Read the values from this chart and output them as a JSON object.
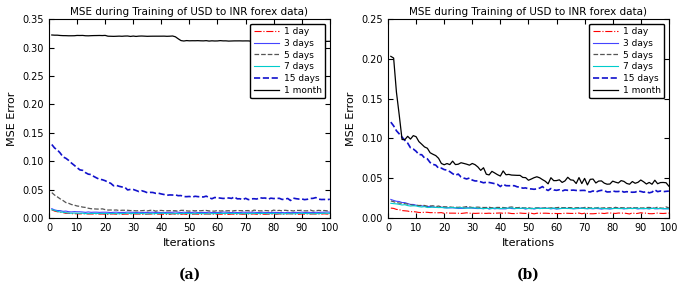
{
  "title": "MSE during Training of USD to INR forex data)",
  "xlabel": "Iterations",
  "ylabel": "MSE Error",
  "legend_labels": [
    "1 day",
    "3 days",
    "5 days",
    "7 days",
    "15 days",
    "1 month"
  ],
  "line_styles_a": [
    {
      "color": "#FF0000",
      "linestyle": "-.",
      "linewidth": 0.8
    },
    {
      "color": "#4444FF",
      "linestyle": "-",
      "linewidth": 0.8
    },
    {
      "color": "#555555",
      "linestyle": "--",
      "linewidth": 0.9
    },
    {
      "color": "#00CCCC",
      "linestyle": "-",
      "linewidth": 0.8
    },
    {
      "color": "#1111CC",
      "linestyle": "--",
      "linewidth": 1.2
    },
    {
      "color": "#000000",
      "linestyle": "-",
      "linewidth": 0.9
    }
  ],
  "line_styles_b": [
    {
      "color": "#FF0000",
      "linestyle": "-.",
      "linewidth": 0.8
    },
    {
      "color": "#4444FF",
      "linestyle": "-",
      "linewidth": 0.8
    },
    {
      "color": "#555555",
      "linestyle": "--",
      "linewidth": 0.9
    },
    {
      "color": "#00CCCC",
      "linestyle": "-",
      "linewidth": 0.8
    },
    {
      "color": "#1111CC",
      "linestyle": "--",
      "linewidth": 1.2
    },
    {
      "color": "#000000",
      "linestyle": "-",
      "linewidth": 0.9
    }
  ],
  "xlim": [
    0,
    100
  ],
  "xticks": [
    0,
    10,
    20,
    30,
    40,
    50,
    60,
    70,
    80,
    90,
    100
  ],
  "ylim_a": [
    0,
    0.35
  ],
  "yticks_a": [
    0,
    0.05,
    0.1,
    0.15,
    0.2,
    0.25,
    0.3,
    0.35
  ],
  "ylim_b": [
    0,
    0.25
  ],
  "yticks_b": [
    0,
    0.05,
    0.1,
    0.15,
    0.2,
    0.25
  ],
  "label_a": "(a)",
  "label_b": "(b)",
  "figsize": [
    6.85,
    2.96
  ],
  "dpi": 100
}
